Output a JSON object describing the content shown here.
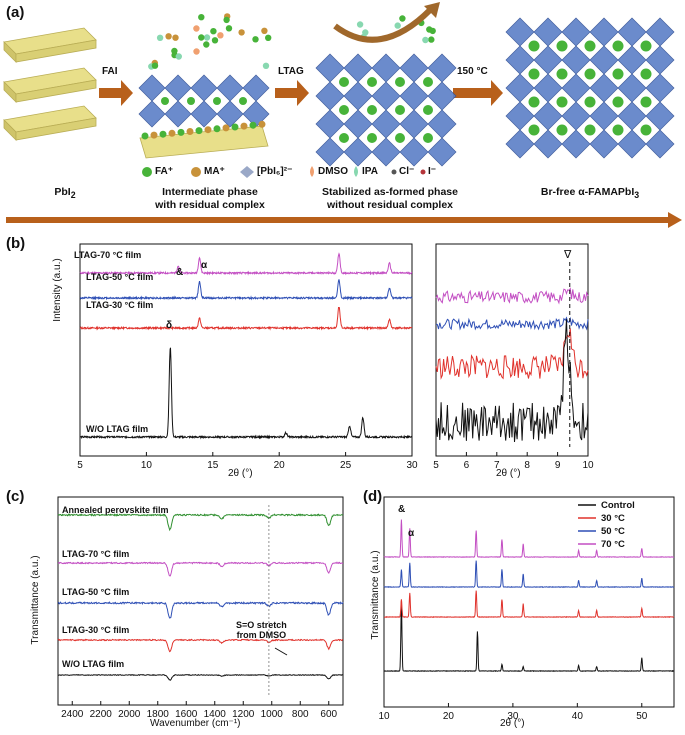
{
  "panel_a": {
    "label": "(a)",
    "step_labels": [
      "FAI",
      "LTAG",
      "150 °C"
    ],
    "captions": [
      {
        "line1": "PbI",
        "sub": "2",
        "line2": ""
      },
      {
        "line1": "Intermediate phase",
        "sub": "",
        "line2": "with residual complex"
      },
      {
        "line1": "Stabilized as-formed phase",
        "sub": "",
        "line2": "without residual complex"
      },
      {
        "line1": "Br-free α-FAMAPbI",
        "sub": "3",
        "line2": ""
      }
    ],
    "legend": [
      "FA⁺",
      "MA⁺",
      "[PbI₆]²⁻",
      "DMSO",
      "IPA",
      "Cl⁻",
      "I⁻"
    ],
    "colors": {
      "pbi2": "#e8df8a",
      "octahedra": "#5b7fc7",
      "fa": "#47b339",
      "ma": "#c8923a",
      "dmso": "#f0a070",
      "ipa": "#88d8b0",
      "arrow": "#b8601b"
    }
  },
  "panel_b": {
    "label": "(b)",
    "ylabel": "Intensity (a.u.)",
    "xlabel": "2θ (°)",
    "xlabel_right": "2θ (°)",
    "series": [
      "LTAG-70 °C film",
      "LTAG-50 °C film",
      "LTAG-30 °C film",
      "W/O LTAG film"
    ],
    "colors": [
      "#c34fc3",
      "#2e4fb5",
      "#e0322c",
      "#111111"
    ],
    "annotations": [
      "&",
      "α",
      "δ",
      "∇"
    ]
  },
  "panel_c": {
    "label": "(c)",
    "ylabel": "Transmittance (a.u.)",
    "xlabel": "Wavenumber (cm⁻¹)",
    "series": [
      "Annealed perovskite film",
      "LTAG-70 °C film",
      "LTAG-50 °C film",
      "LTAG-30 °C film",
      "W/O LTAG film"
    ],
    "colors": [
      "#2f8f2f",
      "#c34fc3",
      "#2e4fb5",
      "#e0322c",
      "#111111"
    ],
    "annotation_line1": "S=O stretch",
    "annotation_line2": "from DMSO"
  },
  "panel_d": {
    "label": "(d)",
    "ylabel": "Transmittance (a.u.)",
    "xlabel": "2θ (°)",
    "legend": [
      "Control",
      "30 °C",
      "50 °C",
      "70 °C"
    ],
    "colors": [
      "#111111",
      "#e0322c",
      "#2e4fb5",
      "#c34fc3"
    ],
    "annotations": [
      "&",
      "α"
    ]
  },
  "chart_data": [
    {
      "type": "line",
      "panel": "b-left",
      "xlabel": "2θ (°)",
      "ylabel": "Intensity (a.u.)",
      "xlim": [
        5,
        30
      ],
      "xticks": [
        5,
        10,
        15,
        20,
        25,
        30
      ],
      "series": [
        {
          "name": "LTAG-70 °C film",
          "peaks": [
            [
              12.4,
              0.25
            ],
            [
              14.0,
              0.55
            ],
            [
              24.5,
              0.7
            ],
            [
              28.3,
              0.35
            ]
          ]
        },
        {
          "name": "LTAG-50 °C film",
          "peaks": [
            [
              14.0,
              0.6
            ],
            [
              24.5,
              0.65
            ],
            [
              28.3,
              0.35
            ]
          ]
        },
        {
          "name": "LTAG-30 °C film",
          "peaks": [
            [
              14.0,
              0.35
            ],
            [
              24.5,
              0.75
            ],
            [
              28.3,
              0.3
            ]
          ]
        },
        {
          "name": "W/O LTAG film",
          "peaks": [
            [
              11.8,
              3.2
            ],
            [
              20.5,
              0.15
            ],
            [
              25.3,
              0.4
            ],
            [
              26.3,
              0.7
            ]
          ]
        }
      ]
    },
    {
      "type": "line",
      "panel": "b-right",
      "xlabel": "2θ (°)",
      "xlim": [
        5,
        10
      ],
      "xticks": [
        5,
        6,
        7,
        8,
        9,
        10
      ],
      "marker_x": 9.4
    },
    {
      "type": "line",
      "panel": "c",
      "xlabel": "Wavenumber (cm⁻¹)",
      "ylabel": "Transmittance (a.u.)",
      "xlim": [
        2500,
        500
      ],
      "xticks": [
        2400,
        2200,
        2000,
        1800,
        1600,
        1400,
        1200,
        1000,
        800,
        600
      ],
      "dips": [
        [
          1715,
          0.6
        ],
        [
          1350,
          0.15
        ],
        [
          1020,
          0.12
        ],
        [
          600,
          0.45
        ]
      ]
    },
    {
      "type": "line",
      "panel": "d",
      "xlabel": "2θ (°)",
      "ylabel": "Transmittance (a.u.)",
      "xlim": [
        10,
        55
      ],
      "xticks": [
        10,
        20,
        30,
        40,
        50
      ],
      "series": [
        {
          "name": "Control",
          "peaks": [
            [
              12.7,
              3.2
            ],
            [
              24.5,
              1.8
            ],
            [
              28.3,
              0.3
            ],
            [
              31.6,
              0.2
            ],
            [
              40.2,
              0.25
            ],
            [
              43.0,
              0.2
            ],
            [
              50.0,
              0.6
            ]
          ]
        },
        {
          "name": "30 °C",
          "peaks": [
            [
              12.7,
              0.8
            ],
            [
              14.0,
              1.1
            ],
            [
              24.3,
              1.2
            ],
            [
              28.3,
              0.8
            ],
            [
              31.6,
              0.6
            ],
            [
              40.2,
              0.3
            ],
            [
              43.0,
              0.3
            ],
            [
              50.0,
              0.4
            ]
          ]
        },
        {
          "name": "50 °C",
          "peaks": [
            [
              12.7,
              0.8
            ],
            [
              14.0,
              1.1
            ],
            [
              24.3,
              1.2
            ],
            [
              28.3,
              0.8
            ],
            [
              31.6,
              0.6
            ],
            [
              40.2,
              0.3
            ],
            [
              43.0,
              0.3
            ],
            [
              50.0,
              0.4
            ]
          ]
        },
        {
          "name": "70 °C",
          "peaks": [
            [
              12.7,
              1.7
            ],
            [
              14.0,
              1.3
            ],
            [
              24.3,
              1.2
            ],
            [
              28.3,
              0.8
            ],
            [
              31.6,
              0.6
            ],
            [
              40.2,
              0.3
            ],
            [
              43.0,
              0.3
            ],
            [
              50.0,
              0.4
            ]
          ]
        }
      ]
    }
  ]
}
